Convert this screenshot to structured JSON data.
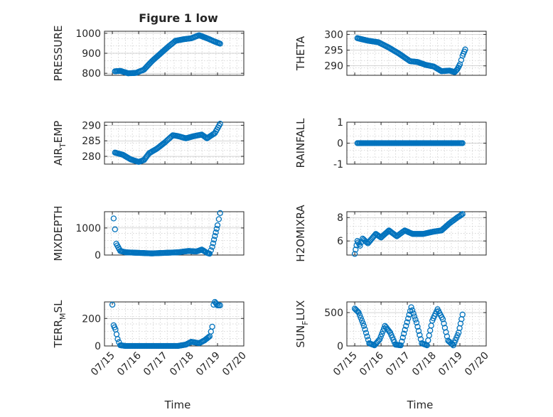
{
  "figure": {
    "title": "Figure 1 low"
  },
  "chart_data": [
    {
      "type": "scatter",
      "name": "pressure",
      "title": "Figure 1 low",
      "ylabel": "PRESSURE",
      "xlabel": "",
      "ylim": [
        790,
        1010
      ],
      "yticks": [
        800,
        900,
        1000
      ],
      "x_keys": [
        0.1,
        0.3,
        0.6,
        0.9,
        1.2,
        1.5,
        1.8,
        2.1,
        2.4,
        2.7,
        3.0,
        3.3,
        3.6,
        3.9,
        4.1
      ],
      "y_keys": [
        810,
        812,
        800,
        802,
        818,
        860,
        895,
        930,
        962,
        970,
        975,
        990,
        975,
        958,
        948
      ]
    },
    {
      "type": "scatter",
      "name": "theta",
      "ylabel": "THETA",
      "xlabel": "",
      "ylim": [
        287,
        301
      ],
      "yticks": [
        290,
        295,
        300
      ],
      "x_keys": [
        0.1,
        0.5,
        0.9,
        1.3,
        1.7,
        2.1,
        2.4,
        2.7,
        3.0,
        3.3,
        3.6,
        3.8,
        3.9,
        4.0,
        4.1,
        4.2
      ],
      "y_keys": [
        298.8,
        298.0,
        297.5,
        295.8,
        293.8,
        291.5,
        291.2,
        290.3,
        289.8,
        288.3,
        288.5,
        288.0,
        288.9,
        290.5,
        293.2,
        295.2
      ]
    },
    {
      "type": "scatter",
      "name": "air_temp",
      "ylabel": "AIR_TEMP",
      "xlabel": "",
      "ylim": [
        277.5,
        291
      ],
      "yticks": [
        280,
        285,
        290
      ],
      "x_keys": [
        0.1,
        0.4,
        0.7,
        1.0,
        1.2,
        1.4,
        1.7,
        2.0,
        2.3,
        2.5,
        2.8,
        3.1,
        3.4,
        3.6,
        3.9,
        4.1
      ],
      "y_keys": [
        281.2,
        280.5,
        279.0,
        278.2,
        278.8,
        281.0,
        282.5,
        284.5,
        286.8,
        286.5,
        285.8,
        286.5,
        287.0,
        285.8,
        287.5,
        290.5
      ]
    },
    {
      "type": "scatter",
      "name": "rainfall",
      "ylabel": "RAINFALL",
      "xlabel": "",
      "ylim": [
        -1,
        1
      ],
      "yticks": [
        -1,
        0,
        1
      ],
      "x_keys": [
        0.1,
        4.1
      ],
      "y_keys": [
        0,
        0
      ]
    },
    {
      "type": "scatter",
      "name": "mixdepth",
      "ylabel": "MIXDEPTH",
      "xlabel": "",
      "ylim": [
        0,
        1600
      ],
      "yticks": [
        0,
        1000
      ],
      "x_keys": [
        0.05,
        0.1,
        0.15,
        0.3,
        0.5,
        1.0,
        1.5,
        2.0,
        2.5,
        2.9,
        3.2,
        3.4,
        3.6,
        3.7,
        3.8,
        3.9,
        4.0,
        4.1
      ],
      "y_keys": [
        1350,
        950,
        420,
        150,
        100,
        80,
        60,
        80,
        100,
        150,
        130,
        200,
        80,
        50,
        300,
        700,
        1100,
        1550
      ]
    },
    {
      "type": "scatter",
      "name": "h2omixra",
      "ylabel": "H2OMIXRA",
      "xlabel": "",
      "ylim": [
        4.8,
        8.5
      ],
      "yticks": [
        6,
        8
      ],
      "x_keys": [
        0.0,
        0.1,
        0.2,
        0.3,
        0.5,
        0.8,
        1.0,
        1.3,
        1.6,
        1.9,
        2.2,
        2.6,
        3.0,
        3.3,
        3.6,
        3.9,
        4.1
      ],
      "y_keys": [
        4.9,
        6.0,
        5.6,
        6.2,
        5.8,
        6.6,
        6.3,
        6.9,
        6.4,
        6.9,
        6.6,
        6.6,
        6.8,
        6.9,
        7.5,
        8.0,
        8.3
      ]
    },
    {
      "type": "scatter",
      "name": "terr_msl",
      "ylabel": "TERR_MSL",
      "xlabel": "Time",
      "ylim": [
        0,
        320
      ],
      "yticks": [
        0,
        200
      ],
      "x_keys": [
        0.0,
        0.05,
        0.12,
        0.2,
        0.3,
        0.5,
        1.0,
        1.5,
        2.0,
        2.5,
        2.8,
        3.0,
        3.3,
        3.5,
        3.7,
        3.8,
        3.85,
        3.9,
        4.0,
        4.1
      ],
      "y_keys": [
        300,
        150,
        120,
        50,
        5,
        0,
        0,
        0,
        0,
        0,
        10,
        30,
        20,
        40,
        70,
        140,
        300,
        320,
        295,
        295
      ]
    },
    {
      "type": "scatter",
      "name": "sun_flux",
      "ylabel": "SUN_FLUX",
      "xlabel": "Time",
      "ylim": [
        0,
        660
      ],
      "yticks": [
        0,
        500
      ],
      "x_keys": [
        0.0,
        0.15,
        0.35,
        0.55,
        0.75,
        0.95,
        1.15,
        1.35,
        1.55,
        1.75,
        1.95,
        2.15,
        2.35,
        2.55,
        2.75,
        2.95,
        3.15,
        3.35,
        3.55,
        3.75,
        3.95,
        4.1
      ],
      "y_keys": [
        560,
        500,
        300,
        40,
        10,
        100,
        300,
        200,
        20,
        10,
        300,
        580,
        350,
        40,
        10,
        380,
        550,
        400,
        80,
        10,
        200,
        470
      ]
    }
  ],
  "axis": {
    "xticks": [
      "07/15",
      "07/16",
      "07/17",
      "07/18",
      "07/19",
      "07/20"
    ],
    "xlim": [
      -0.3,
      5
    ]
  },
  "colors": {
    "marker": "#0072BD",
    "axis": "#262626",
    "grid": "#c8c8c8"
  }
}
